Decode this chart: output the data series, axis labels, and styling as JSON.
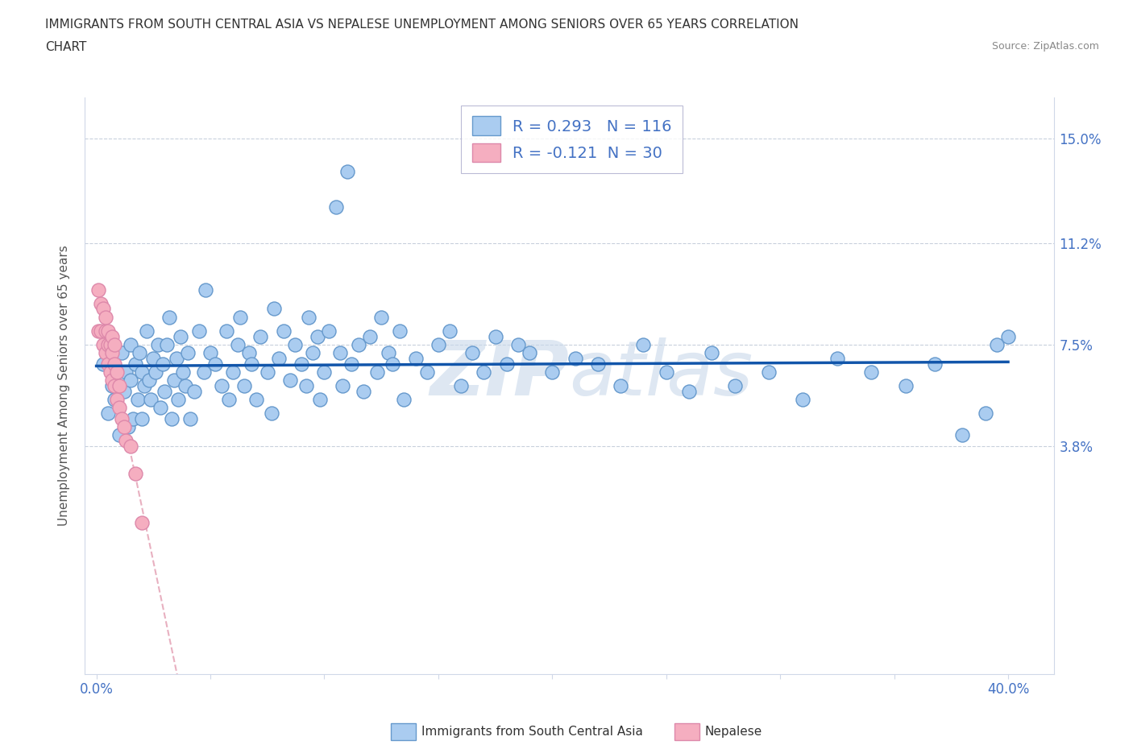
{
  "title_line1": "IMMIGRANTS FROM SOUTH CENTRAL ASIA VS NEPALESE UNEMPLOYMENT AMONG SENIORS OVER 65 YEARS CORRELATION",
  "title_line2": "CHART",
  "source_text": "Source: ZipAtlas.com",
  "ylabel": "Unemployment Among Seniors over 65 years",
  "xlim": [
    -0.005,
    0.42
  ],
  "ylim": [
    -0.045,
    0.165
  ],
  "yticks": [
    0.038,
    0.075,
    0.112,
    0.15
  ],
  "yticklabels": [
    "3.8%",
    "7.5%",
    "11.2%",
    "15.0%"
  ],
  "xtick_positions": [
    0.0,
    0.05,
    0.1,
    0.15,
    0.2,
    0.25,
    0.3,
    0.35,
    0.4
  ],
  "blue_color": "#aaccf0",
  "blue_edge_color": "#6699cc",
  "pink_color": "#f5aec0",
  "pink_edge_color": "#dd88aa",
  "line_blue_color": "#1155aa",
  "line_pink_color": "#e8b0c0",
  "watermark_color": "#c8d8ea",
  "R_blue": 0.293,
  "N_blue": 116,
  "R_pink": -0.121,
  "N_pink": 30,
  "legend_label_blue": "Immigrants from South Central Asia",
  "legend_label_pink": "Nepalese",
  "blue_scatter_x": [
    0.003,
    0.005,
    0.007,
    0.008,
    0.009,
    0.01,
    0.01,
    0.011,
    0.012,
    0.013,
    0.014,
    0.015,
    0.015,
    0.016,
    0.017,
    0.018,
    0.019,
    0.02,
    0.02,
    0.021,
    0.022,
    0.023,
    0.024,
    0.025,
    0.026,
    0.027,
    0.028,
    0.029,
    0.03,
    0.031,
    0.032,
    0.033,
    0.034,
    0.035,
    0.036,
    0.037,
    0.038,
    0.039,
    0.04,
    0.041,
    0.043,
    0.045,
    0.047,
    0.048,
    0.05,
    0.052,
    0.055,
    0.057,
    0.058,
    0.06,
    0.062,
    0.063,
    0.065,
    0.067,
    0.068,
    0.07,
    0.072,
    0.075,
    0.077,
    0.078,
    0.08,
    0.082,
    0.085,
    0.087,
    0.09,
    0.092,
    0.093,
    0.095,
    0.097,
    0.098,
    0.1,
    0.102,
    0.105,
    0.107,
    0.108,
    0.11,
    0.112,
    0.115,
    0.117,
    0.12,
    0.123,
    0.125,
    0.128,
    0.13,
    0.133,
    0.135,
    0.14,
    0.145,
    0.15,
    0.155,
    0.16,
    0.165,
    0.17,
    0.175,
    0.18,
    0.185,
    0.19,
    0.2,
    0.21,
    0.22,
    0.23,
    0.24,
    0.25,
    0.26,
    0.27,
    0.28,
    0.295,
    0.31,
    0.325,
    0.34,
    0.355,
    0.368,
    0.38,
    0.39,
    0.395,
    0.4
  ],
  "blue_scatter_y": [
    0.068,
    0.05,
    0.06,
    0.055,
    0.065,
    0.042,
    0.06,
    0.072,
    0.058,
    0.065,
    0.045,
    0.062,
    0.075,
    0.048,
    0.068,
    0.055,
    0.072,
    0.048,
    0.065,
    0.06,
    0.08,
    0.062,
    0.055,
    0.07,
    0.065,
    0.075,
    0.052,
    0.068,
    0.058,
    0.075,
    0.085,
    0.048,
    0.062,
    0.07,
    0.055,
    0.078,
    0.065,
    0.06,
    0.072,
    0.048,
    0.058,
    0.08,
    0.065,
    0.095,
    0.072,
    0.068,
    0.06,
    0.08,
    0.055,
    0.065,
    0.075,
    0.085,
    0.06,
    0.072,
    0.068,
    0.055,
    0.078,
    0.065,
    0.05,
    0.088,
    0.07,
    0.08,
    0.062,
    0.075,
    0.068,
    0.06,
    0.085,
    0.072,
    0.078,
    0.055,
    0.065,
    0.08,
    0.125,
    0.072,
    0.06,
    0.138,
    0.068,
    0.075,
    0.058,
    0.078,
    0.065,
    0.085,
    0.072,
    0.068,
    0.08,
    0.055,
    0.07,
    0.065,
    0.075,
    0.08,
    0.06,
    0.072,
    0.065,
    0.078,
    0.068,
    0.075,
    0.072,
    0.065,
    0.07,
    0.068,
    0.06,
    0.075,
    0.065,
    0.058,
    0.072,
    0.06,
    0.065,
    0.055,
    0.07,
    0.065,
    0.06,
    0.068,
    0.042,
    0.05,
    0.075,
    0.078
  ],
  "pink_scatter_x": [
    0.001,
    0.001,
    0.002,
    0.002,
    0.003,
    0.003,
    0.004,
    0.004,
    0.004,
    0.005,
    0.005,
    0.005,
    0.006,
    0.006,
    0.007,
    0.007,
    0.007,
    0.008,
    0.008,
    0.008,
    0.009,
    0.009,
    0.01,
    0.01,
    0.011,
    0.012,
    0.013,
    0.015,
    0.017,
    0.02
  ],
  "pink_scatter_y": [
    0.08,
    0.095,
    0.08,
    0.09,
    0.075,
    0.088,
    0.08,
    0.072,
    0.085,
    0.075,
    0.068,
    0.08,
    0.065,
    0.075,
    0.072,
    0.062,
    0.078,
    0.06,
    0.068,
    0.075,
    0.055,
    0.065,
    0.052,
    0.06,
    0.048,
    0.045,
    0.04,
    0.038,
    0.028,
    0.01
  ]
}
